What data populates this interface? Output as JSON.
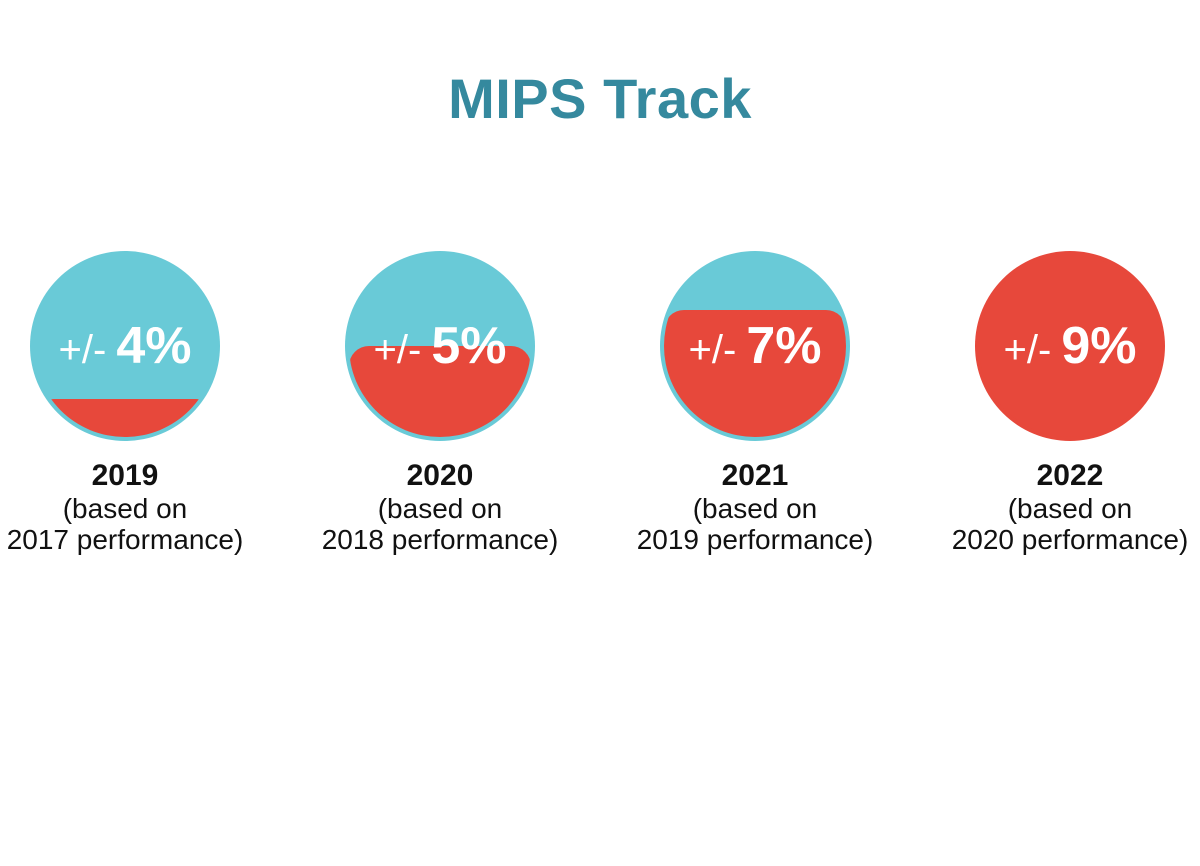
{
  "title": "MIPS Track",
  "colors": {
    "blue": "#69CAD7",
    "red": "#E7483B",
    "title_teal": "#35899E",
    "caption_black": "#111111",
    "label_white": "#FFFFFF"
  },
  "chart_data": {
    "type": "bar",
    "title": "MIPS Track",
    "categories": [
      "2019",
      "2020",
      "2021",
      "2022"
    ],
    "values": [
      4,
      5,
      7,
      9
    ],
    "value_labels": [
      "+/- 4%",
      "+/- 5%",
      "+/- 7%",
      "+/- 9%"
    ],
    "category_sublabels": [
      "(based on 2017 performance)",
      "(based on 2018 performance)",
      "(based on 2019 performance)",
      "(based on 2020 performance)"
    ],
    "representation": "circle-fill pictograph, red fill level per year",
    "fill_fractions": [
      0.21,
      0.5,
      0.7,
      1.0
    ],
    "legend_position": "none",
    "grid": false
  },
  "items": [
    {
      "sign": "+/-",
      "value": "4%",
      "year": "2019",
      "line1": "(based on",
      "line2": "2017 performance)",
      "fill_percent": 21
    },
    {
      "sign": "+/-",
      "value": "5%",
      "year": "2020",
      "line1": "(based on",
      "line2": "2018 performance)",
      "fill_percent": 50
    },
    {
      "sign": "+/-",
      "value": "7%",
      "year": "2021",
      "line1": "(based on",
      "line2": "2019 performance)",
      "fill_percent": 70
    },
    {
      "sign": "+/-",
      "value": "9%",
      "year": "2022",
      "line1": "(based on",
      "line2": "2020 performance)",
      "fill_percent": 100
    }
  ]
}
